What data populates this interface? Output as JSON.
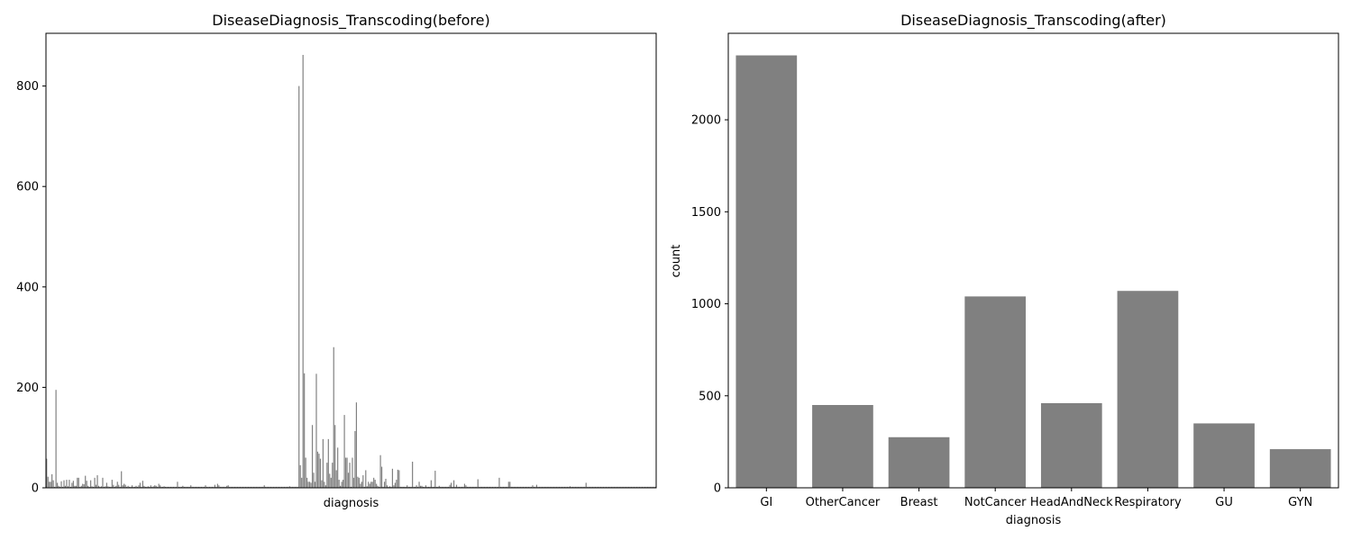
{
  "chart_data": [
    {
      "type": "bar",
      "title": "DiseaseDiagnosis_Transcoding(before)",
      "xlabel": "diagnosis",
      "ylabel": "",
      "ylim": [
        0,
        905
      ],
      "yticks": [
        0,
        200,
        400,
        600,
        800
      ],
      "x_tick_labels_shown": false,
      "bar_color": "#808080",
      "values": [
        58,
        22,
        12,
        12,
        27,
        15,
        2,
        195,
        10,
        4,
        2,
        13,
        2,
        15,
        4,
        16,
        3,
        16,
        2,
        10,
        14,
        4,
        4,
        20,
        20,
        2,
        4,
        8,
        7,
        24,
        14,
        4,
        2,
        15,
        3,
        2,
        20,
        6,
        25,
        4,
        2,
        3,
        20,
        2,
        3,
        10,
        3,
        2,
        2,
        16,
        6,
        2,
        4,
        12,
        6,
        2,
        33,
        5,
        8,
        6,
        2,
        4,
        2,
        2,
        5,
        2,
        2,
        4,
        2,
        5,
        10,
        2,
        14,
        4,
        2,
        2,
        3,
        2,
        5,
        2,
        3,
        5,
        4,
        2,
        8,
        5,
        2,
        2,
        3,
        2,
        2,
        2,
        2,
        2,
        2,
        2,
        2,
        2,
        12,
        2,
        2,
        2,
        4,
        2,
        2,
        2,
        2,
        2,
        5,
        2,
        2,
        2,
        2,
        2,
        2,
        2,
        2,
        2,
        2,
        5,
        2,
        2,
        2,
        2,
        2,
        2,
        6,
        2,
        8,
        5,
        2,
        2,
        2,
        2,
        2,
        4,
        5,
        2,
        2,
        2,
        2,
        2,
        2,
        2,
        2,
        2,
        2,
        2,
        2,
        2,
        2,
        2,
        2,
        2,
        2,
        2,
        2,
        2,
        2,
        2,
        2,
        2,
        2,
        5,
        2,
        2,
        2,
        2,
        2,
        2,
        2,
        2,
        2,
        2,
        2,
        2,
        2,
        2,
        2,
        2,
        2,
        2,
        3,
        2,
        2,
        2,
        2,
        2,
        2,
        800,
        45,
        20,
        862,
        228,
        60,
        20,
        12,
        12,
        10,
        125,
        30,
        12,
        227,
        72,
        68,
        58,
        15,
        97,
        12,
        5,
        50,
        97,
        28,
        20,
        50,
        280,
        125,
        35,
        80,
        16,
        4,
        12,
        16,
        145,
        60,
        60,
        30,
        50,
        2,
        60,
        20,
        113,
        170,
        22,
        20,
        8,
        12,
        25,
        2,
        35,
        3,
        12,
        8,
        12,
        12,
        20,
        16,
        8,
        4,
        2,
        65,
        42,
        2,
        12,
        18,
        5,
        2,
        3,
        2,
        38,
        5,
        10,
        16,
        36,
        35,
        2,
        2,
        2,
        2,
        2,
        5,
        2,
        2,
        2,
        52,
        2,
        2,
        5,
        2,
        12,
        4,
        4,
        2,
        2,
        5,
        2,
        2,
        2,
        15,
        2,
        2,
        34,
        2,
        2,
        4,
        2,
        2,
        2,
        2,
        2,
        2,
        2,
        6,
        10,
        2,
        15,
        2,
        6,
        2,
        2,
        2,
        2,
        2,
        8,
        5,
        2,
        2,
        2,
        2,
        2,
        2,
        2,
        2,
        17,
        2,
        2,
        2,
        2,
        2,
        2,
        2,
        2,
        2,
        2,
        2,
        2,
        2,
        2,
        2,
        20,
        2,
        2,
        2,
        2,
        2,
        2,
        12,
        12,
        2,
        2,
        2,
        2,
        2,
        2,
        2,
        2,
        2,
        2,
        2,
        2,
        2,
        2,
        2,
        2,
        5,
        2,
        2,
        6,
        2,
        2,
        2,
        2,
        2,
        2,
        2,
        2,
        2,
        2,
        2,
        2,
        2,
        2,
        2,
        2,
        2,
        2,
        2,
        2,
        2,
        2,
        2,
        2,
        3,
        2,
        2,
        2,
        2,
        2,
        2,
        2,
        2,
        2,
        2,
        2,
        10,
        2,
        2,
        2,
        2,
        2,
        2,
        2,
        2,
        2,
        2,
        2,
        2,
        2,
        2,
        2,
        2,
        2,
        2,
        2,
        2,
        2,
        2,
        2,
        2,
        2,
        2,
        2,
        2,
        2,
        2,
        2,
        2,
        2,
        2,
        2,
        2,
        2,
        2,
        2,
        2,
        2,
        2,
        2,
        2,
        2,
        2,
        2,
        2,
        2,
        2,
        2,
        2
      ]
    },
    {
      "type": "bar",
      "title": "DiseaseDiagnosis_Transcoding(after)",
      "xlabel": "diagnosis",
      "ylabel": "count",
      "ylim": [
        0,
        2470
      ],
      "yticks": [
        0,
        500,
        1000,
        1500,
        2000
      ],
      "bar_color": "#808080",
      "categories": [
        "GI",
        "OtherCancer",
        "Breast",
        "NotCancer",
        "HeadAndNeck",
        "Respiratory",
        "GU",
        "GYN"
      ],
      "values": [
        2350,
        450,
        275,
        1040,
        460,
        1070,
        350,
        210
      ]
    }
  ]
}
